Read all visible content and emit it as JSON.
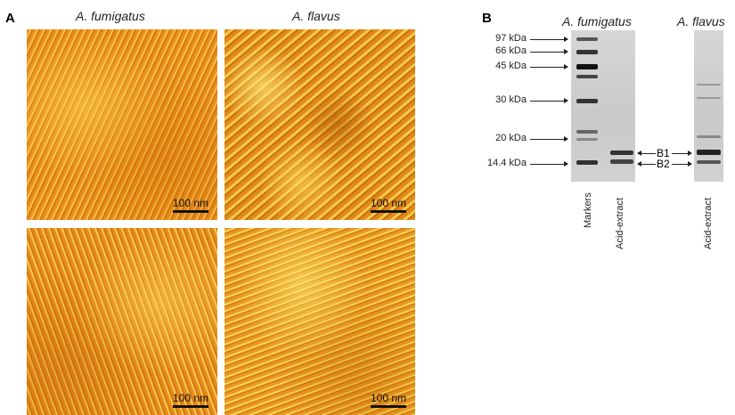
{
  "panel_a": {
    "label": "A",
    "columns": [
      "A. fumigatus",
      "A. flavus"
    ],
    "scale_bars": [
      "100 nm",
      "100 nm",
      "100 nm",
      "100 nm"
    ]
  },
  "panel_b": {
    "label": "B",
    "headers": [
      "A. fumigatus",
      "A. flavus"
    ],
    "markers": [
      "97 kDa",
      "66 kDa",
      "45 kDa",
      "30 kDa",
      "20 kDa",
      "14.4 kDa"
    ],
    "bands": [
      "B1",
      "B2"
    ],
    "lanes": [
      "Markers",
      "Acid-extract",
      "Acid-extract"
    ]
  }
}
